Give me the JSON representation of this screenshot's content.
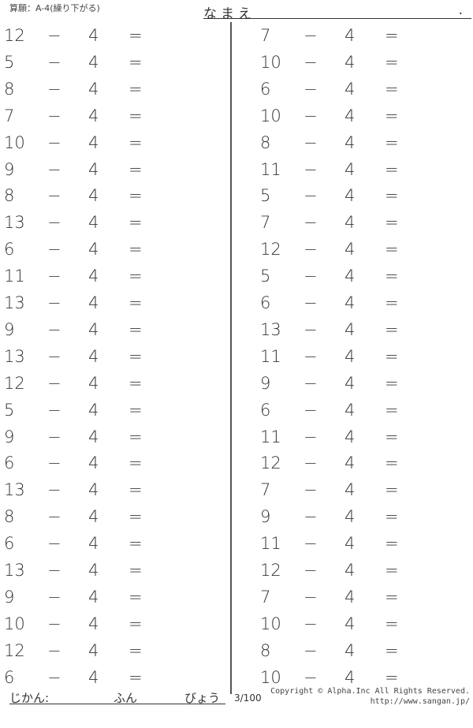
{
  "header": {
    "title": "算願：A-4(繰り下がる)",
    "name_label": "なまえ",
    "name_end": "."
  },
  "problems": {
    "left": [
      12,
      5,
      8,
      7,
      10,
      9,
      8,
      13,
      6,
      11,
      13,
      9,
      13,
      12,
      5,
      9,
      6,
      13,
      8,
      6,
      13,
      9,
      10,
      12,
      6
    ],
    "right": [
      7,
      10,
      6,
      10,
      8,
      11,
      5,
      7,
      12,
      5,
      6,
      13,
      11,
      9,
      6,
      11,
      12,
      7,
      9,
      11,
      12,
      7,
      10,
      8,
      10
    ],
    "operator": "−",
    "subtrahend": "4",
    "equals": "="
  },
  "footer": {
    "time_label": "じかん:",
    "minutes_label": "ふん",
    "seconds_label": "びょう",
    "page": "3/100",
    "copyright": "Copyright © Alpha.Inc All Rights Reserved.",
    "url": "http://www.sangan.jp/"
  }
}
